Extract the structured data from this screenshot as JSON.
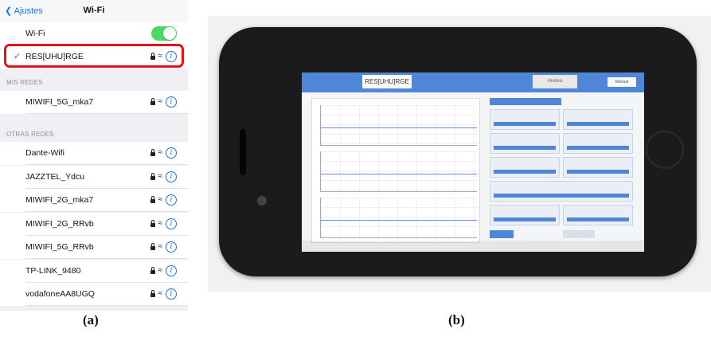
{
  "panel_a": {
    "nav": {
      "back_label": "Ajustes",
      "title": "Wi-Fi"
    },
    "wifi_toggle": {
      "label": "Wi-Fi",
      "on": true,
      "color": "#4cd964"
    },
    "connected_network": "RES[UHU]RGE",
    "sections": {
      "my_networks": "MIS REDES",
      "other_networks": "OTRAS REDES"
    },
    "my_networks": [
      "MIWIFI_5G_mka7"
    ],
    "other_networks": [
      "Dante-Wifi",
      "JAZZTEL_Ydcu",
      "MIWIFI_2G_mka7",
      "MIWIFI_2G_RRvb",
      "MIWIFI_5G_RRvb",
      "TP-LINK_9480",
      "vodafoneAA8UGQ"
    ],
    "highlight_color": "#e0131a",
    "icons": [
      "back-chevron-icon",
      "checkmark-icon",
      "lock-icon",
      "wifi-signal-icon",
      "info-icon"
    ]
  },
  "panel_b": {
    "app_logo": "RES[UHU]RGE",
    "app_partner": "Huelva",
    "app_button": "Manual"
  },
  "captions": {
    "a": "(a)",
    "b": "(b)"
  }
}
